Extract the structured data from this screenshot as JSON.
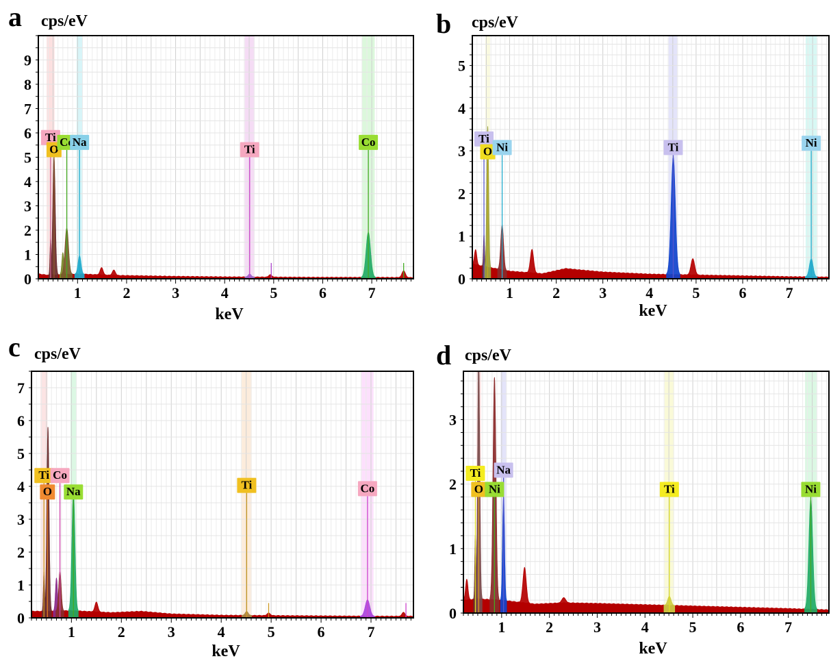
{
  "chart_data": [
    {
      "type": "area",
      "panel": "a",
      "ylabel": "cps/eV",
      "xlabel": "keV",
      "xlim": [
        0.2,
        7.85
      ],
      "ylim": [
        0,
        10
      ],
      "xticks": [
        1,
        2,
        3,
        4,
        5,
        6,
        7
      ],
      "yticks": [
        0,
        1,
        2,
        3,
        4,
        5,
        6,
        7,
        8,
        9
      ],
      "ytick_labels": [
        "0",
        "1",
        "2",
        "3",
        "4",
        "5",
        "6",
        "7",
        "8",
        "9"
      ],
      "grid": true,
      "spectrum_color": "#b40000",
      "baseline": [
        [
          0.2,
          0.2
        ],
        [
          0.4,
          0.15
        ],
        [
          1.0,
          0.2
        ],
        [
          1.8,
          0.14
        ],
        [
          3.0,
          0.1
        ],
        [
          4.0,
          0.08
        ],
        [
          5.0,
          0.07
        ],
        [
          6.0,
          0.06
        ],
        [
          7.0,
          0.06
        ],
        [
          7.85,
          0.05
        ]
      ],
      "peaks": [
        {
          "x": 0.45,
          "height": 1.5,
          "width": 0.012,
          "color": "#6a2a2a"
        },
        {
          "x": 0.52,
          "height": 4.8,
          "width": 0.025,
          "color": "#6a2a2a"
        },
        {
          "x": 0.7,
          "height": 0.9,
          "width": 0.02,
          "color": "#7a8a2a"
        },
        {
          "x": 0.78,
          "height": 1.9,
          "width": 0.035,
          "color": "#7a5a2a"
        },
        {
          "x": 1.04,
          "height": 0.75,
          "width": 0.03,
          "color": "#22aacc"
        },
        {
          "x": 1.49,
          "height": 0.3,
          "width": 0.03,
          "color": "#b40000"
        },
        {
          "x": 1.74,
          "height": 0.22,
          "width": 0.03,
          "color": "#b40000"
        },
        {
          "x": 4.51,
          "height": 0.12,
          "width": 0.03,
          "color": "#9966cc"
        },
        {
          "x": 4.93,
          "height": 0.1,
          "width": 0.03,
          "color": "#b40000"
        },
        {
          "x": 6.93,
          "height": 1.85,
          "width": 0.045,
          "color": "#22aa66"
        },
        {
          "x": 7.65,
          "height": 0.28,
          "width": 0.035,
          "color": "#b40000"
        }
      ],
      "element_bands": [
        {
          "x": 0.45,
          "color": "#fce0e0",
          "width": 0.16
        },
        {
          "x": 1.04,
          "color": "#d8f5f8",
          "width": 0.12
        },
        {
          "x": 4.51,
          "color": "#f5dcf5",
          "width": 0.2
        },
        {
          "x": 6.93,
          "color": "#dcf8dc",
          "width": 0.26
        }
      ],
      "marker_lines": [
        {
          "x": 0.45,
          "top": 5.5,
          "color": "#cc6699"
        },
        {
          "x": 0.52,
          "top": 5.0,
          "color": "#8a5a2a"
        },
        {
          "x": 0.78,
          "top": 5.3,
          "color": "#44aa22"
        },
        {
          "x": 1.04,
          "top": 5.3,
          "color": "#22aacc"
        },
        {
          "x": 4.51,
          "top": 5.0,
          "color": "#cc44cc"
        },
        {
          "x": 6.93,
          "top": 5.3,
          "color": "#44aa22"
        },
        {
          "x": 4.95,
          "top": 0.65,
          "color": "#aa44cc"
        },
        {
          "x": 7.65,
          "top": 0.65,
          "color": "#44aa22"
        }
      ],
      "element_labels": [
        {
          "text": "Ti",
          "x": 0.45,
          "y": 5.5,
          "bg": "#f6a8c0"
        },
        {
          "text": "O",
          "x": 0.52,
          "y": 5.0,
          "bg": "#f0c020"
        },
        {
          "text": "Co",
          "x": 0.78,
          "y": 5.3,
          "bg": "#99dd33"
        },
        {
          "text": "Na",
          "x": 1.04,
          "y": 5.3,
          "bg": "#88d0e8"
        },
        {
          "text": "Ti",
          "x": 4.51,
          "y": 5.0,
          "bg": "#f6a8c0"
        },
        {
          "text": "Co",
          "x": 6.93,
          "y": 5.3,
          "bg": "#99dd33"
        }
      ]
    },
    {
      "type": "area",
      "panel": "b",
      "ylabel": "cps/eV",
      "xlabel": "keV",
      "xlim": [
        0.2,
        7.85
      ],
      "ylim": [
        0,
        5.7
      ],
      "xticks": [
        1,
        2,
        3,
        4,
        5,
        6,
        7
      ],
      "yticks": [
        0,
        1,
        2,
        3,
        4,
        5
      ],
      "ytick_labels": [
        "0",
        "1",
        "2",
        "3",
        "4",
        "5"
      ],
      "grid": true,
      "spectrum_color": "#b40000",
      "baseline": [
        [
          0.2,
          0.35
        ],
        [
          0.5,
          0.28
        ],
        [
          1.0,
          0.18
        ],
        [
          1.7,
          0.12
        ],
        [
          2.2,
          0.24
        ],
        [
          3.0,
          0.16
        ],
        [
          4.0,
          0.11
        ],
        [
          5.0,
          0.09
        ],
        [
          6.0,
          0.07
        ],
        [
          7.0,
          0.05
        ],
        [
          7.85,
          0.04
        ]
      ],
      "peaks": [
        {
          "x": 0.27,
          "height": 0.35,
          "width": 0.025,
          "color": "#b40000"
        },
        {
          "x": 0.45,
          "height": 0.75,
          "width": 0.012,
          "color": "#6a2a2a"
        },
        {
          "x": 0.53,
          "height": 3.3,
          "width": 0.02,
          "color": "#9aa040"
        },
        {
          "x": 0.84,
          "height": 1.05,
          "width": 0.03,
          "color": "#8a2a2a"
        },
        {
          "x": 1.48,
          "height": 0.55,
          "width": 0.035,
          "color": "#b40000"
        },
        {
          "x": 4.51,
          "height": 2.75,
          "width": 0.045,
          "color": "#1144cc"
        },
        {
          "x": 4.93,
          "height": 0.38,
          "width": 0.04,
          "color": "#b40000"
        },
        {
          "x": 7.47,
          "height": 0.42,
          "width": 0.04,
          "color": "#22aacc"
        }
      ],
      "element_bands": [
        {
          "x": 0.53,
          "color": "#fafae0",
          "width": 0.1
        },
        {
          "x": 4.51,
          "color": "#e4e4fa",
          "width": 0.2
        },
        {
          "x": 7.47,
          "color": "#d8f8f4",
          "width": 0.24
        }
      ],
      "marker_lines": [
        {
          "x": 0.45,
          "top": 3.1,
          "color": "#5555cc"
        },
        {
          "x": 0.53,
          "top": 2.8,
          "color": "#bbaa22"
        },
        {
          "x": 0.84,
          "top": 2.9,
          "color": "#22aacc"
        },
        {
          "x": 4.51,
          "top": 2.9,
          "color": "#5555cc"
        },
        {
          "x": 7.47,
          "top": 3.0,
          "color": "#22aacc"
        }
      ],
      "element_labels": [
        {
          "text": "Ti",
          "x": 0.45,
          "y": 3.1,
          "bg": "#c8c0ee"
        },
        {
          "text": "O",
          "x": 0.53,
          "y": 2.8,
          "bg": "#f0dc20"
        },
        {
          "text": "Ni",
          "x": 0.84,
          "y": 2.9,
          "bg": "#9ad4ee"
        },
        {
          "text": "Ti",
          "x": 4.51,
          "y": 2.9,
          "bg": "#c8c0ee"
        },
        {
          "text": "Ni",
          "x": 7.47,
          "y": 3.0,
          "bg": "#9ad4ee"
        }
      ]
    },
    {
      "type": "area",
      "panel": "c",
      "ylabel": "cps/eV",
      "xlabel": "keV",
      "xlim": [
        0.2,
        7.85
      ],
      "ylim": [
        0,
        7.5
      ],
      "xticks": [
        1,
        2,
        3,
        4,
        5,
        6,
        7
      ],
      "yticks": [
        0,
        1,
        2,
        3,
        4,
        5,
        6,
        7
      ],
      "ytick_labels": [
        "0",
        "1",
        "2",
        "3",
        "4",
        "5",
        "6",
        "7"
      ],
      "grid": true,
      "spectrum_color": "#b40000",
      "baseline": [
        [
          0.2,
          0.2
        ],
        [
          0.5,
          0.2
        ],
        [
          1.0,
          0.22
        ],
        [
          1.8,
          0.16
        ],
        [
          2.4,
          0.2
        ],
        [
          3.0,
          0.12
        ],
        [
          4.0,
          0.08
        ],
        [
          5.0,
          0.07
        ],
        [
          6.0,
          0.06
        ],
        [
          7.0,
          0.05
        ],
        [
          7.85,
          0.05
        ]
      ],
      "peaks": [
        {
          "x": 0.45,
          "height": 1.2,
          "width": 0.012,
          "color": "#6a2a2a"
        },
        {
          "x": 0.53,
          "height": 5.6,
          "width": 0.022,
          "color": "#6a2a2a"
        },
        {
          "x": 0.7,
          "height": 1.0,
          "width": 0.02,
          "color": "#8a2a8a"
        },
        {
          "x": 0.77,
          "height": 1.2,
          "width": 0.025,
          "color": "#8a2a2a"
        },
        {
          "x": 1.04,
          "height": 3.6,
          "width": 0.03,
          "color": "#22aa66"
        },
        {
          "x": 1.5,
          "height": 0.3,
          "width": 0.03,
          "color": "#b40000"
        },
        {
          "x": 4.51,
          "height": 0.12,
          "width": 0.03,
          "color": "#aa8844"
        },
        {
          "x": 4.95,
          "height": 0.08,
          "width": 0.03,
          "color": "#b40000"
        },
        {
          "x": 6.93,
          "height": 0.5,
          "width": 0.045,
          "color": "#aa44dd"
        },
        {
          "x": 7.65,
          "height": 0.12,
          "width": 0.03,
          "color": "#b40000"
        }
      ],
      "element_bands": [
        {
          "x": 0.45,
          "color": "#fce4e4",
          "width": 0.14
        },
        {
          "x": 1.04,
          "color": "#dcf8e4",
          "width": 0.12
        },
        {
          "x": 4.51,
          "color": "#fcecdc",
          "width": 0.2
        },
        {
          "x": 6.93,
          "color": "#fce0fc",
          "width": 0.24
        }
      ],
      "marker_lines": [
        {
          "x": 0.45,
          "top": 4.1,
          "color": "#cc9922"
        },
        {
          "x": 0.52,
          "top": 3.6,
          "color": "#dd7722"
        },
        {
          "x": 0.77,
          "top": 4.1,
          "color": "#cc44aa"
        },
        {
          "x": 1.04,
          "top": 3.6,
          "color": "#44aa22"
        },
        {
          "x": 4.51,
          "top": 3.8,
          "color": "#cc9922"
        },
        {
          "x": 6.93,
          "top": 3.7,
          "color": "#cc44cc"
        },
        {
          "x": 4.95,
          "top": 0.45,
          "color": "#cc9922"
        },
        {
          "x": 7.7,
          "top": 0.45,
          "color": "#cc44cc"
        }
      ],
      "element_labels": [
        {
          "text": "Ti",
          "x": 0.45,
          "y": 4.1,
          "bg": "#f0c020"
        },
        {
          "text": "O",
          "x": 0.52,
          "y": 3.6,
          "bg": "#f08a30"
        },
        {
          "text": "Co",
          "x": 0.77,
          "y": 4.1,
          "bg": "#f6a8c0"
        },
        {
          "text": "Na",
          "x": 1.04,
          "y": 3.6,
          "bg": "#99dd33"
        },
        {
          "text": "Ti",
          "x": 4.51,
          "y": 3.8,
          "bg": "#f0c020"
        },
        {
          "text": "Co",
          "x": 6.93,
          "y": 3.7,
          "bg": "#f6a8c0"
        }
      ]
    },
    {
      "type": "area",
      "panel": "d",
      "ylabel": "cps/eV",
      "xlabel": "keV",
      "xlim": [
        0.2,
        7.85
      ],
      "ylim": [
        0,
        3.75
      ],
      "xticks": [
        1,
        2,
        3,
        4,
        5,
        6,
        7
      ],
      "yticks": [
        0,
        1,
        2,
        3
      ],
      "ytick_labels": [
        "0",
        "1",
        "2",
        "3"
      ],
      "grid": true,
      "spectrum_color": "#b40000",
      "baseline": [
        [
          0.2,
          0.2
        ],
        [
          0.5,
          0.22
        ],
        [
          1.0,
          0.2
        ],
        [
          1.7,
          0.14
        ],
        [
          2.3,
          0.16
        ],
        [
          3.0,
          0.15
        ],
        [
          4.0,
          0.13
        ],
        [
          5.0,
          0.11
        ],
        [
          6.0,
          0.09
        ],
        [
          7.0,
          0.07
        ],
        [
          7.85,
          0.05
        ]
      ],
      "peaks": [
        {
          "x": 0.27,
          "height": 0.32,
          "width": 0.025,
          "color": "#b40000"
        },
        {
          "x": 0.45,
          "height": 1.0,
          "width": 0.012,
          "color": "#6a2a2a"
        },
        {
          "x": 0.52,
          "height": 3.75,
          "width": 0.022,
          "color": "#7a4a4a"
        },
        {
          "x": 0.85,
          "height": 3.45,
          "width": 0.03,
          "color": "#8a2a2a"
        },
        {
          "x": 1.04,
          "height": 1.6,
          "width": 0.02,
          "color": "#1144cc"
        },
        {
          "x": 1.48,
          "height": 0.55,
          "width": 0.035,
          "color": "#b40000"
        },
        {
          "x": 2.3,
          "height": 0.08,
          "width": 0.04,
          "color": "#b40000"
        },
        {
          "x": 4.51,
          "height": 0.14,
          "width": 0.035,
          "color": "#cccc44"
        },
        {
          "x": 7.47,
          "height": 1.7,
          "width": 0.04,
          "color": "#22aa66"
        }
      ],
      "element_bands": [
        {
          "x": 0.52,
          "color": "#fce4e4",
          "width": 0.1
        },
        {
          "x": 1.04,
          "color": "#e4e4fa",
          "width": 0.12
        },
        {
          "x": 4.51,
          "color": "#fafad8",
          "width": 0.2
        },
        {
          "x": 7.47,
          "color": "#dcf8e4",
          "width": 0.24
        }
      ],
      "marker_lines": [
        {
          "x": 0.45,
          "top": 2.05,
          "color": "#dddd22"
        },
        {
          "x": 0.52,
          "top": 1.8,
          "color": "#dd9922"
        },
        {
          "x": 0.85,
          "top": 1.8,
          "color": "#44aa22"
        },
        {
          "x": 1.04,
          "top": 2.1,
          "color": "#5555cc"
        },
        {
          "x": 4.51,
          "top": 1.8,
          "color": "#dddd22"
        },
        {
          "x": 7.47,
          "top": 1.8,
          "color": "#44aa22"
        }
      ],
      "element_labels": [
        {
          "text": "Ti",
          "x": 0.45,
          "y": 2.05,
          "bg": "#f4ec20"
        },
        {
          "text": "O",
          "x": 0.52,
          "y": 1.8,
          "bg": "#f0c020"
        },
        {
          "text": "Ni",
          "x": 0.85,
          "y": 1.8,
          "bg": "#99dd33"
        },
        {
          "text": "Na",
          "x": 1.04,
          "y": 2.1,
          "bg": "#c8c0ee"
        },
        {
          "text": "Ti",
          "x": 4.51,
          "y": 1.8,
          "bg": "#f4ec20"
        },
        {
          "text": "Ni",
          "x": 7.47,
          "y": 1.8,
          "bg": "#99dd33"
        }
      ]
    }
  ]
}
